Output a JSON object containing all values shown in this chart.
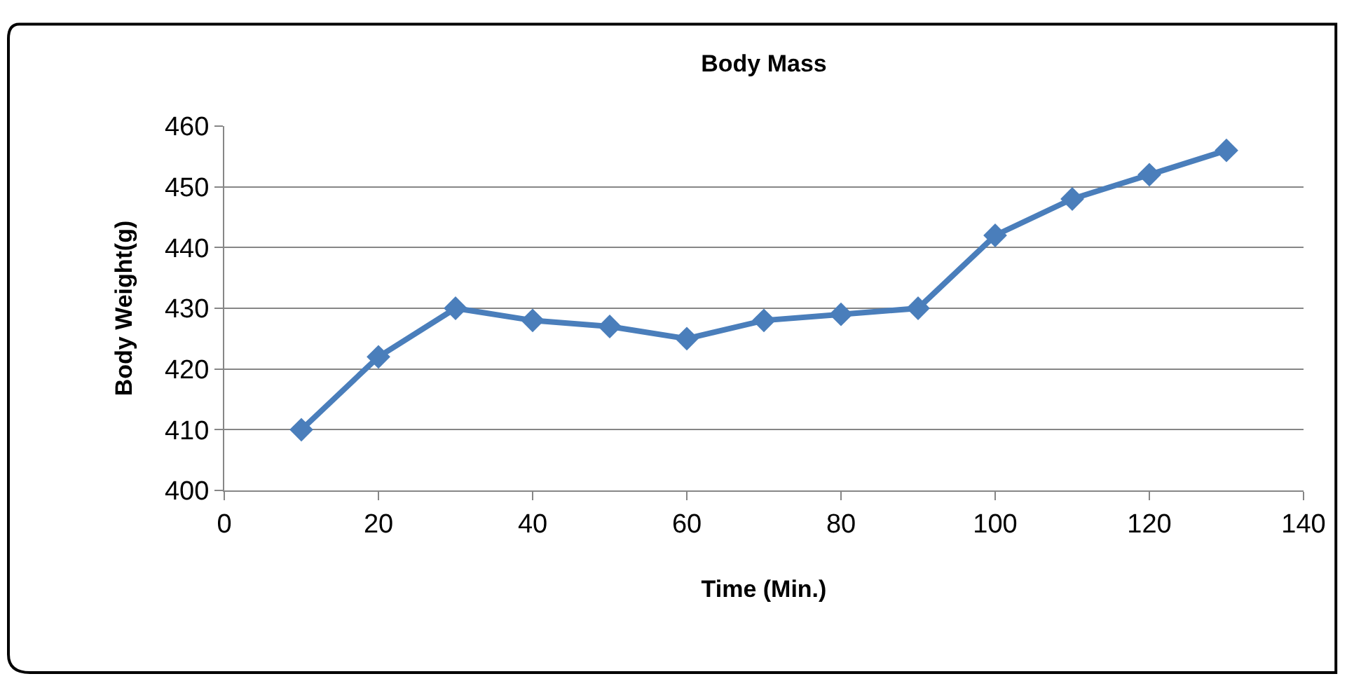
{
  "chart_data": {
    "type": "line",
    "title": "Body Mass",
    "xlabel": "Time (Min.)",
    "ylabel": "Body Weight(g)",
    "x": [
      10,
      20,
      30,
      40,
      50,
      60,
      70,
      80,
      90,
      100,
      110,
      120,
      130
    ],
    "series": [
      {
        "color": "#4a7ebb",
        "values": [
          410,
          422,
          430,
          428,
          427,
          425,
          428,
          429,
          430,
          442,
          448,
          452,
          456
        ]
      }
    ],
    "xlim": [
      0,
      140
    ],
    "xticks": [
      0,
      20,
      40,
      60,
      80,
      100,
      120,
      140
    ],
    "ylim": [
      400,
      460
    ],
    "yticks": [
      400,
      410,
      420,
      430,
      440,
      450,
      460
    ],
    "grid": "y",
    "marker": "diamond",
    "line_style": "solid"
  }
}
